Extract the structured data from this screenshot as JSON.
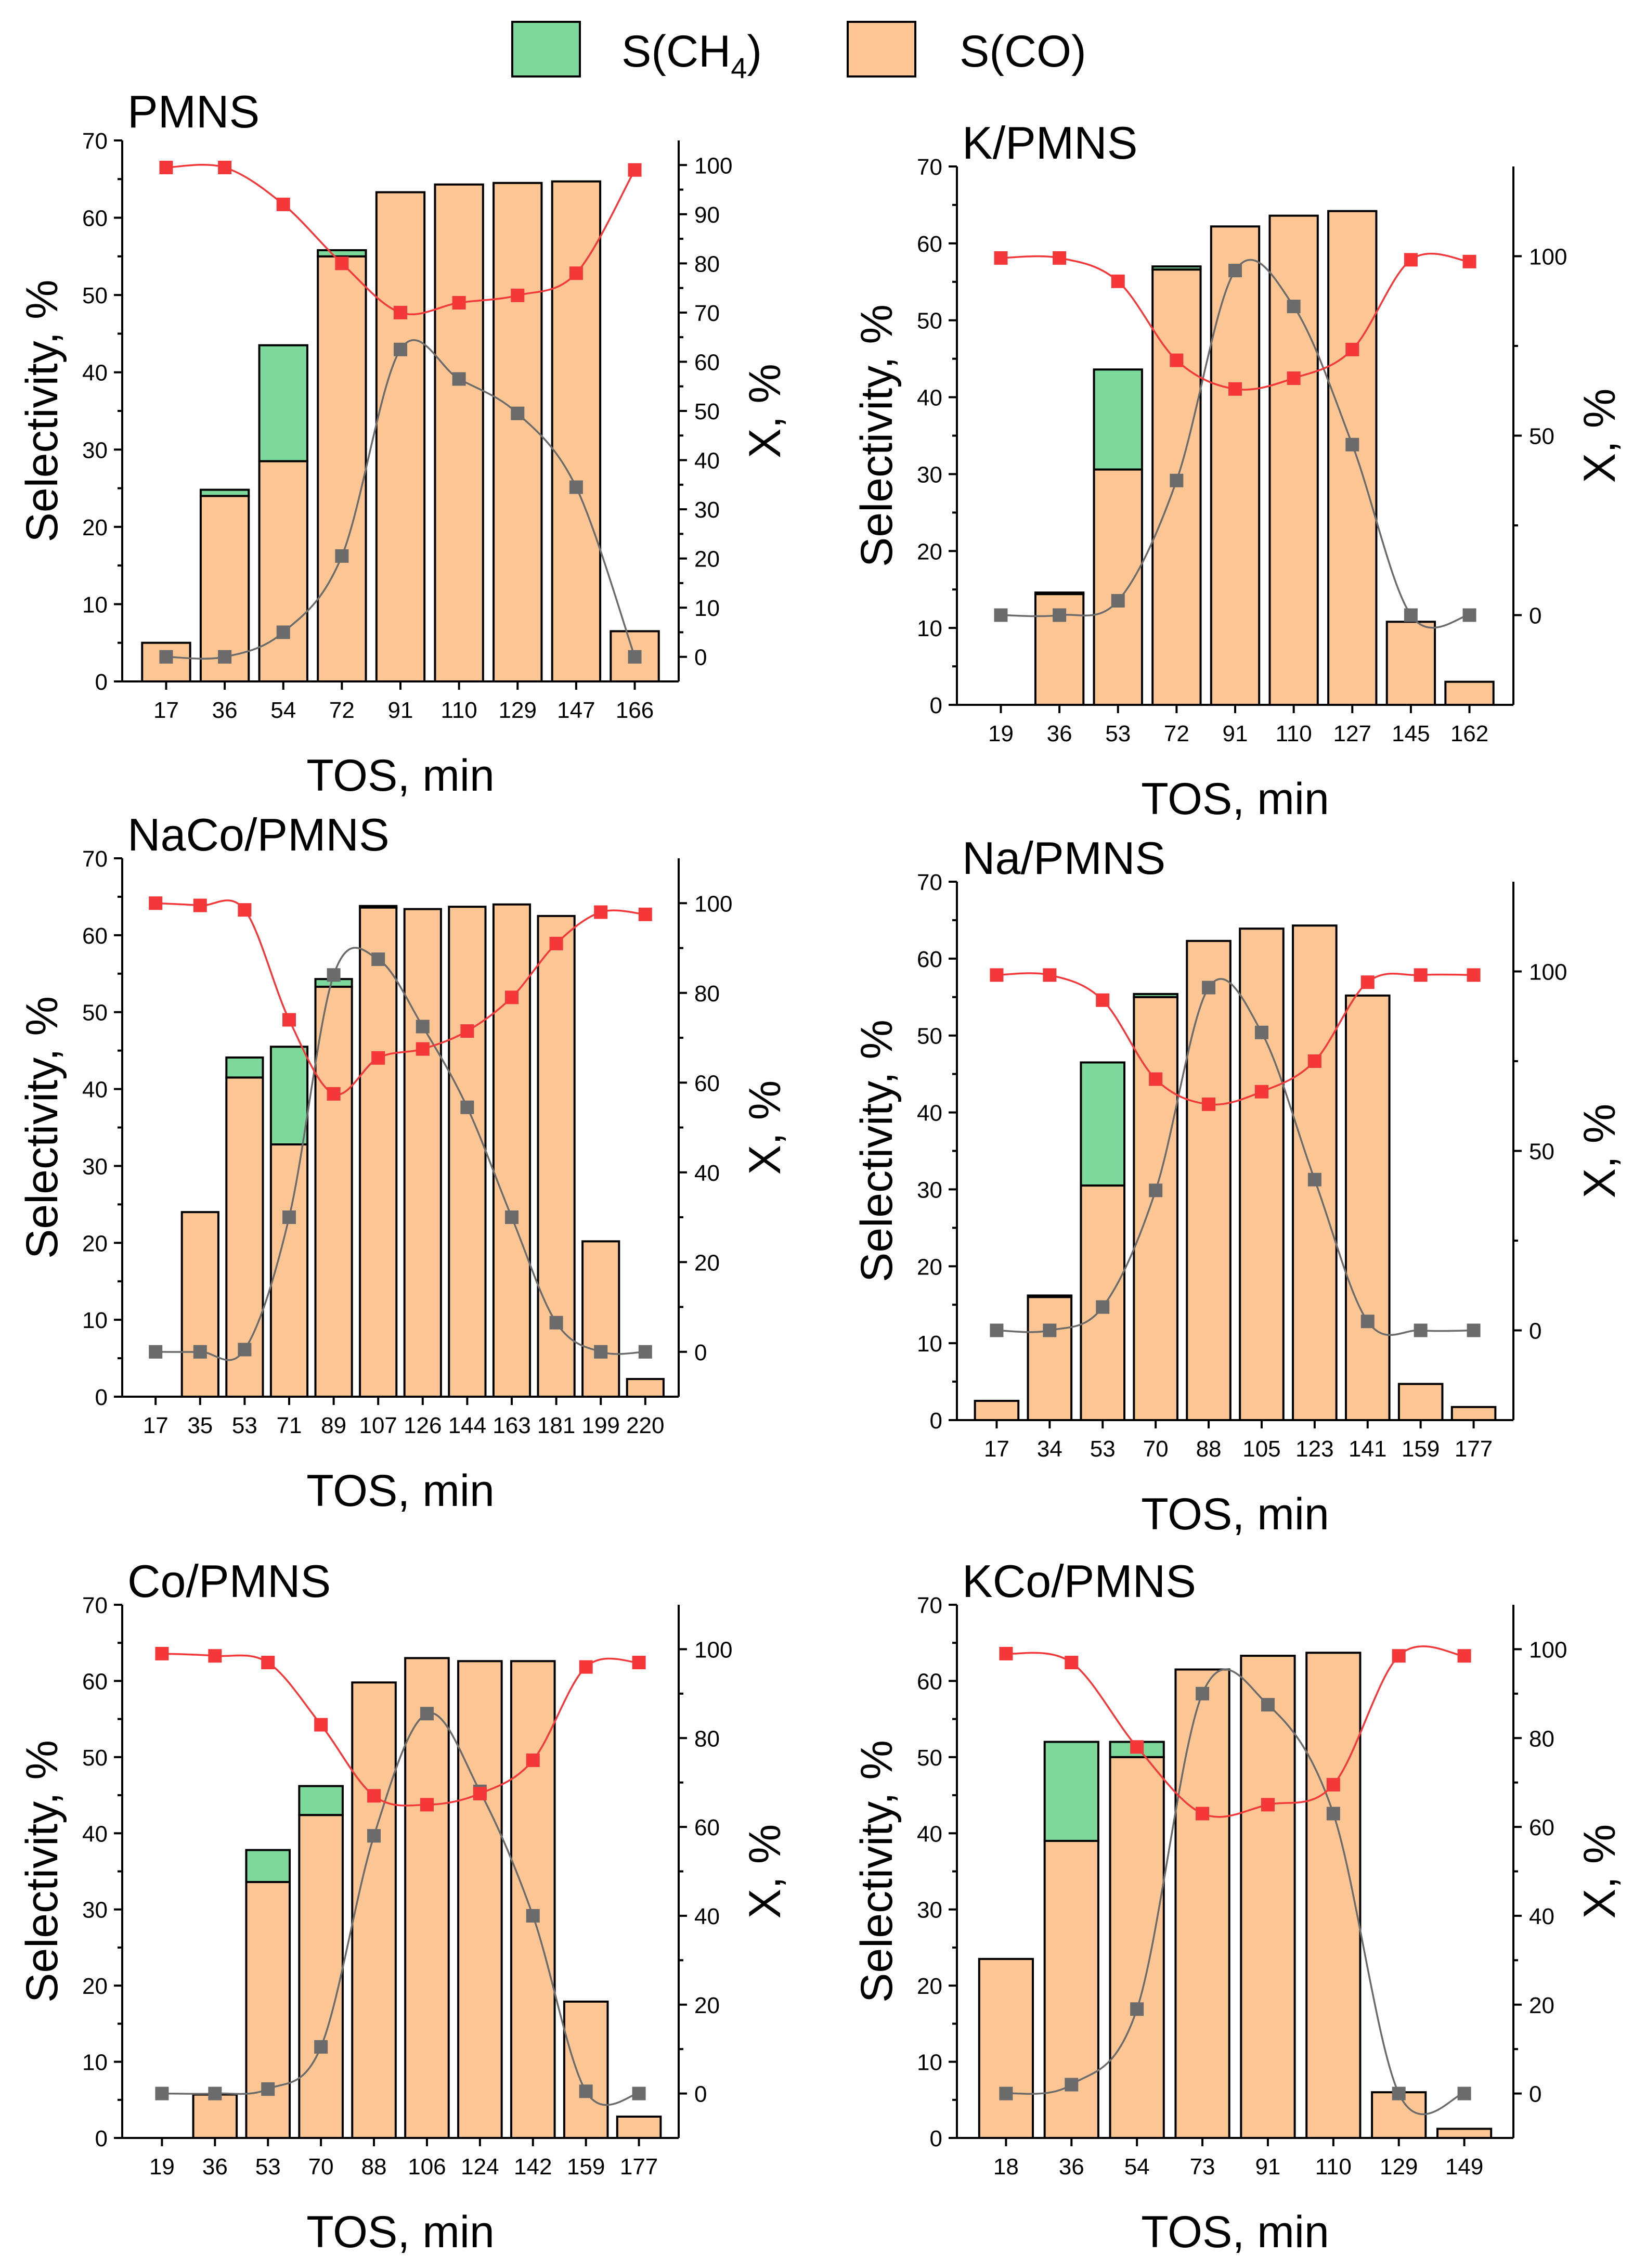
{
  "colors": {
    "ch4": "#7dd89b",
    "co": "#fcc594",
    "sel": "#f4383a",
    "conv": "#6b6b6b",
    "axis": "#000000"
  },
  "legend": {
    "ch4": {
      "label_main": "S(CH",
      "label_sub": "4",
      "label_end": ")"
    },
    "co": {
      "label": "S(CO)"
    }
  },
  "chart_data": [
    {
      "type": "bar",
      "title": "PMNS",
      "xlabel": "TOS, min",
      "ylabel": "Selectivity, %",
      "y2label": "X, %",
      "ylim": [
        0,
        70
      ],
      "y2lim": [
        -5,
        105
      ],
      "y2ticks": [
        0,
        10,
        20,
        30,
        40,
        50,
        60,
        70,
        80,
        90,
        100
      ],
      "ymax_tick": 70,
      "categories": [
        "17",
        "36",
        "54",
        "72",
        "91",
        "110",
        "129",
        "147",
        "166"
      ],
      "series": [
        {
          "name": "S(CO)",
          "values": [
            5,
            24,
            28.5,
            55,
            63.3,
            64.3,
            64.5,
            64.7,
            6.5
          ]
        },
        {
          "name": "S(CH4)",
          "values": [
            0,
            0.8,
            15,
            0.8,
            0,
            0,
            0,
            0,
            0
          ]
        },
        {
          "name": "X (red)",
          "axis": "right",
          "values": [
            99.5,
            99.5,
            92,
            80,
            70,
            72,
            73.5,
            78,
            99
          ]
        },
        {
          "name": "X (gray)",
          "axis": "right",
          "values": [
            0,
            0,
            5,
            20.5,
            62.5,
            56.5,
            49.5,
            34.5,
            0
          ]
        }
      ]
    },
    {
      "type": "bar",
      "title": "K/PMNS",
      "xlabel": "TOS, min",
      "ylabel": "Selectivity, %",
      "y2label": "X, %",
      "ylim": [
        0,
        70
      ],
      "y2lim": [
        -25,
        125
      ],
      "y2ticks": [
        0,
        50,
        100
      ],
      "ymax_tick": 70,
      "categories": [
        "19",
        "36",
        "53",
        "72",
        "91",
        "110",
        "127",
        "145",
        "162"
      ],
      "series": [
        {
          "name": "S(CO)",
          "values": [
            0,
            14.4,
            30.6,
            56.6,
            62.2,
            63.6,
            64.2,
            10.8,
            3
          ]
        },
        {
          "name": "S(CH4)",
          "values": [
            0,
            0.2,
            13,
            0.4,
            0,
            0,
            0,
            0,
            0
          ]
        },
        {
          "name": "X (red)",
          "axis": "right",
          "values": [
            99.5,
            99.5,
            93,
            71,
            63,
            66,
            74,
            99,
            98.5
          ]
        },
        {
          "name": "X (gray)",
          "axis": "right",
          "values": [
            0,
            0,
            4,
            37.5,
            96,
            86,
            47.5,
            0,
            0
          ]
        }
      ]
    },
    {
      "type": "bar",
      "title": "NaCo/PMNS",
      "xlabel": "TOS, min",
      "ylabel": "Selectivity, %",
      "y2label": "X, %",
      "ylim": [
        0,
        70
      ],
      "y2lim": [
        -10,
        110
      ],
      "y2ticks": [
        0,
        20,
        40,
        60,
        80,
        100
      ],
      "ymax_tick": 70,
      "categories": [
        "17",
        "35",
        "53",
        "71",
        "89",
        "107",
        "126",
        "144",
        "163",
        "181",
        "199",
        "220"
      ],
      "series": [
        {
          "name": "S(CO)",
          "values": [
            0,
            24,
            41.5,
            32.8,
            53.3,
            63.6,
            63.4,
            63.7,
            64,
            62.5,
            20.2,
            2.3
          ]
        },
        {
          "name": "S(CH4)",
          "values": [
            0,
            0,
            2.6,
            12.7,
            1,
            0.2,
            0,
            0,
            0,
            0,
            0,
            0
          ]
        },
        {
          "name": "X (red)",
          "axis": "right",
          "values": [
            100,
            99.5,
            98.5,
            74,
            57.5,
            65.5,
            67.5,
            71.5,
            79,
            91,
            98,
            97.5
          ]
        },
        {
          "name": "X (gray)",
          "axis": "right",
          "values": [
            0,
            0,
            0.5,
            30,
            84,
            87.5,
            72.5,
            54.5,
            30,
            6.5,
            0,
            0
          ]
        }
      ]
    },
    {
      "type": "bar",
      "title": "Na/PMNS",
      "xlabel": "TOS, min",
      "ylabel": "Selectivity, %",
      "y2label": "X, %",
      "ylim": [
        0,
        70
      ],
      "y2lim": [
        -25,
        125
      ],
      "y2ticks": [
        0,
        50,
        100
      ],
      "ymax_tick": 70,
      "categories": [
        "17",
        "34",
        "53",
        "70",
        "88",
        "105",
        "123",
        "141",
        "159",
        "177"
      ],
      "series": [
        {
          "name": "S(CO)",
          "values": [
            2.5,
            16,
            30.5,
            55,
            62.3,
            63.9,
            64.3,
            55.2,
            4.7,
            1.7
          ]
        },
        {
          "name": "S(CH4)",
          "values": [
            0,
            0.2,
            16,
            0.4,
            0,
            0,
            0,
            0,
            0,
            0
          ]
        },
        {
          "name": "X (red)",
          "axis": "right",
          "values": [
            99,
            99,
            92,
            70,
            63,
            66.5,
            75,
            97,
            99,
            99
          ]
        },
        {
          "name": "X (gray)",
          "axis": "right",
          "values": [
            0,
            0,
            6.5,
            39,
            95.5,
            83,
            42,
            2.5,
            0,
            0
          ]
        }
      ]
    },
    {
      "type": "bar",
      "title": "Co/PMNS",
      "xlabel": "TOS, min",
      "ylabel": "Selectivity, %",
      "y2label": "X, %",
      "ylim": [
        0,
        70
      ],
      "y2lim": [
        -10,
        110
      ],
      "y2ticks": [
        0,
        20,
        40,
        60,
        80,
        100
      ],
      "ymax_tick": 70,
      "categories": [
        "19",
        "36",
        "53",
        "70",
        "88",
        "106",
        "124",
        "142",
        "159",
        "177"
      ],
      "series": [
        {
          "name": "S(CO)",
          "values": [
            0,
            5.7,
            33.6,
            42.4,
            59.8,
            63,
            62.6,
            62.6,
            17.9,
            2.8
          ]
        },
        {
          "name": "S(CH4)",
          "values": [
            0,
            0,
            4.2,
            3.8,
            0,
            0,
            0,
            0,
            0,
            0
          ]
        },
        {
          "name": "X (red)",
          "axis": "right",
          "values": [
            99,
            98.5,
            97,
            83,
            67,
            65,
            67.5,
            75,
            96,
            97
          ]
        },
        {
          "name": "X (gray)",
          "axis": "right",
          "values": [
            0,
            0,
            1,
            10.5,
            58,
            85.5,
            68,
            40,
            0.5,
            0
          ]
        }
      ]
    },
    {
      "type": "bar",
      "title": "KCo/PMNS",
      "xlabel": "TOS, min",
      "ylabel": "Selectivity, %",
      "y2label": "X, %",
      "ylim": [
        0,
        70
      ],
      "y2lim": [
        -10,
        110
      ],
      "y2ticks": [
        0,
        20,
        40,
        60,
        80,
        100
      ],
      "ymax_tick": 70,
      "categories": [
        "18",
        "36",
        "54",
        "73",
        "91",
        "110",
        "129",
        "149"
      ],
      "series": [
        {
          "name": "S(CO)",
          "values": [
            23.5,
            39,
            50,
            61.5,
            63.3,
            63.7,
            6,
            1.2
          ]
        },
        {
          "name": "S(CH4)",
          "values": [
            0,
            13,
            2,
            0,
            0,
            0,
            0,
            0
          ]
        },
        {
          "name": "X (red)",
          "axis": "right",
          "values": [
            99,
            97,
            78,
            63,
            65,
            69.5,
            98.5,
            98.5
          ]
        },
        {
          "name": "X (gray)",
          "axis": "right",
          "values": [
            0,
            2,
            19,
            90,
            87.5,
            63,
            0,
            0
          ]
        }
      ]
    }
  ]
}
